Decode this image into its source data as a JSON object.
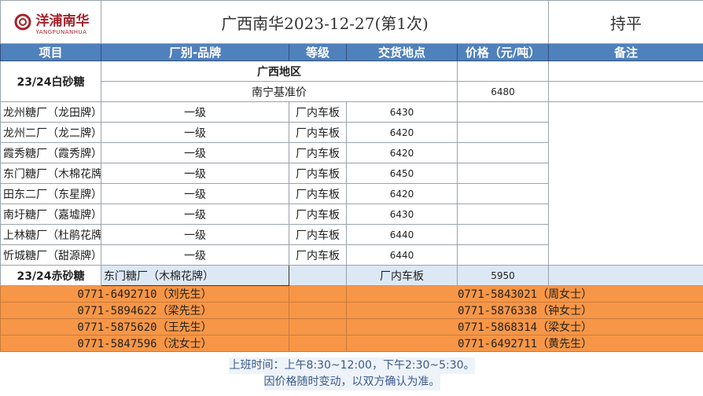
{
  "header": {
    "logo_cn": "洋浦南华",
    "logo_en": "YANGPUNANHUA",
    "title": "广西南华2023-12-27(第1次)",
    "trend": "持平",
    "brand_color": "#a4232b"
  },
  "columns": [
    "项目",
    "厂别-品牌",
    "等级",
    "交货地点",
    "价格（元/吨）",
    "备注"
  ],
  "region": "广西地区",
  "benchmark": {
    "label": "南宁基准价",
    "price": "6480"
  },
  "white_sugar": {
    "item": "23/24白砂糖",
    "rows": [
      {
        "brand": "龙州糖厂（龙田牌）",
        "grade": "一级",
        "delivery": "厂内车板",
        "price": "6430"
      },
      {
        "brand": "龙州二厂（龙二牌）",
        "grade": "一级",
        "delivery": "厂内车板",
        "price": "6420"
      },
      {
        "brand": "霞秀糖厂（霞秀牌）",
        "grade": "一级",
        "delivery": "厂内车板",
        "price": "6420"
      },
      {
        "brand": "东门糖厂（木棉花牌）",
        "grade": "一级",
        "delivery": "厂内车板",
        "price": "6450"
      },
      {
        "brand": "田东二厂（东星牌）",
        "grade": "一级",
        "delivery": "厂内车板",
        "price": "6420"
      },
      {
        "brand": "南圩糖厂（嘉墟牌）",
        "grade": "一级",
        "delivery": "厂内车板",
        "price": "6430"
      },
      {
        "brand": "上林糖厂（杜鹃花牌）",
        "grade": "一级",
        "delivery": "厂内车板",
        "price": "6440"
      },
      {
        "brand": "忻城糖厂（甜源牌）",
        "grade": "一级",
        "delivery": "厂内车板",
        "price": "6440"
      }
    ]
  },
  "red_sugar": {
    "item": "23/24赤砂糖",
    "brand": "东门糖厂（木棉花牌）",
    "delivery": "厂内车板",
    "price": "5950"
  },
  "contacts": [
    [
      "0771-6492710（刘先生）",
      "0771-5843021（周女士）"
    ],
    [
      "0771-5894622（梁先生）",
      "0771-5876338（钟女士）"
    ],
    [
      "0771-5875620（王先生）",
      "0771-5868314（梁女士）"
    ],
    [
      "0771-5847596（沈女士）",
      "0771-6492711（黄先生）"
    ]
  ],
  "footer": {
    "hours": "上班时间：上午8:30~12:00，下午2:30~5:30。",
    "note": "因价格随时变动，以双方确认为准。"
  }
}
